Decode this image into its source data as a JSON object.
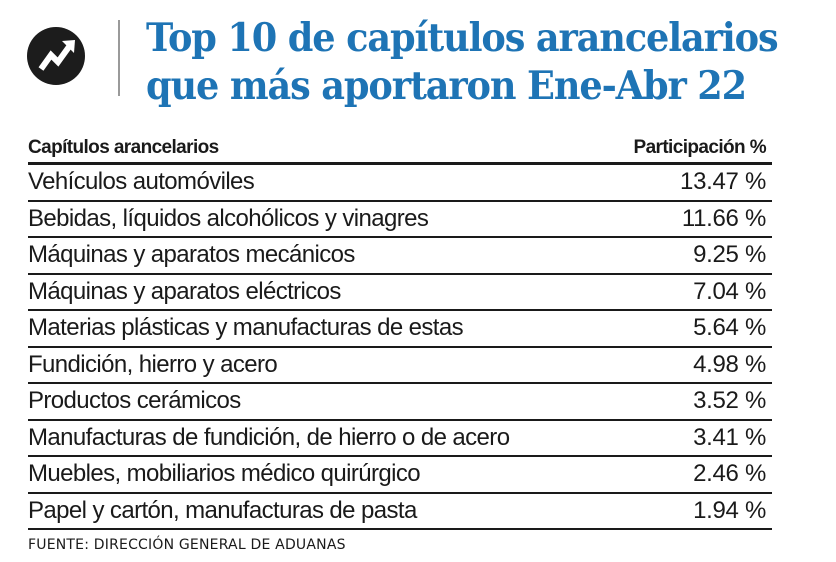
{
  "header": {
    "logo_icon": "trending-up-arrow-icon",
    "title_line1": "Top 10 de capítulos arancelarios",
    "title_line2": "que más aportaron Ene-Abr 22",
    "title_color": "#1e74b5"
  },
  "table": {
    "col_name_header": "Capítulos arancelarios",
    "col_value_header": "Participación %"
  },
  "footer": {
    "source": "FUENTE: DIRECCIÓN GENERAL DE ADUANAS"
  },
  "chart_data": {
    "type": "table",
    "title": "Top 10 de capítulos arancelarios que más aportaron Ene-Abr 22",
    "columns": [
      "Capítulos arancelarios",
      "Participación %"
    ],
    "rows": [
      {
        "name": "Vehículos automóviles",
        "value": 13.47,
        "label": "13.47 %"
      },
      {
        "name": "Bebidas, líquidos alcohólicos y vinagres",
        "value": 11.66,
        "label": "11.66 %"
      },
      {
        "name": "Máquinas y aparatos mecánicos",
        "value": 9.25,
        "label": "9.25 %"
      },
      {
        "name": "Máquinas y aparatos eléctricos",
        "value": 7.04,
        "label": "7.04 %"
      },
      {
        "name": "Materias plásticas y manufacturas de estas",
        "value": 5.64,
        "label": "5.64 %"
      },
      {
        "name": "Fundición, hierro y acero",
        "value": 4.98,
        "label": "4.98 %"
      },
      {
        "name": "Productos cerámicos",
        "value": 3.52,
        "label": "3.52 %"
      },
      {
        "name": "Manufacturas de fundición, de hierro o de acero",
        "value": 3.41,
        "label": "3.41 %"
      },
      {
        "name": "Muebles, mobiliarios médico quirúrgico",
        "value": 2.46,
        "label": "2.46 %"
      },
      {
        "name": "Papel y cartón, manufacturas de pasta",
        "value": 1.94,
        "label": "1.94 %"
      }
    ]
  }
}
